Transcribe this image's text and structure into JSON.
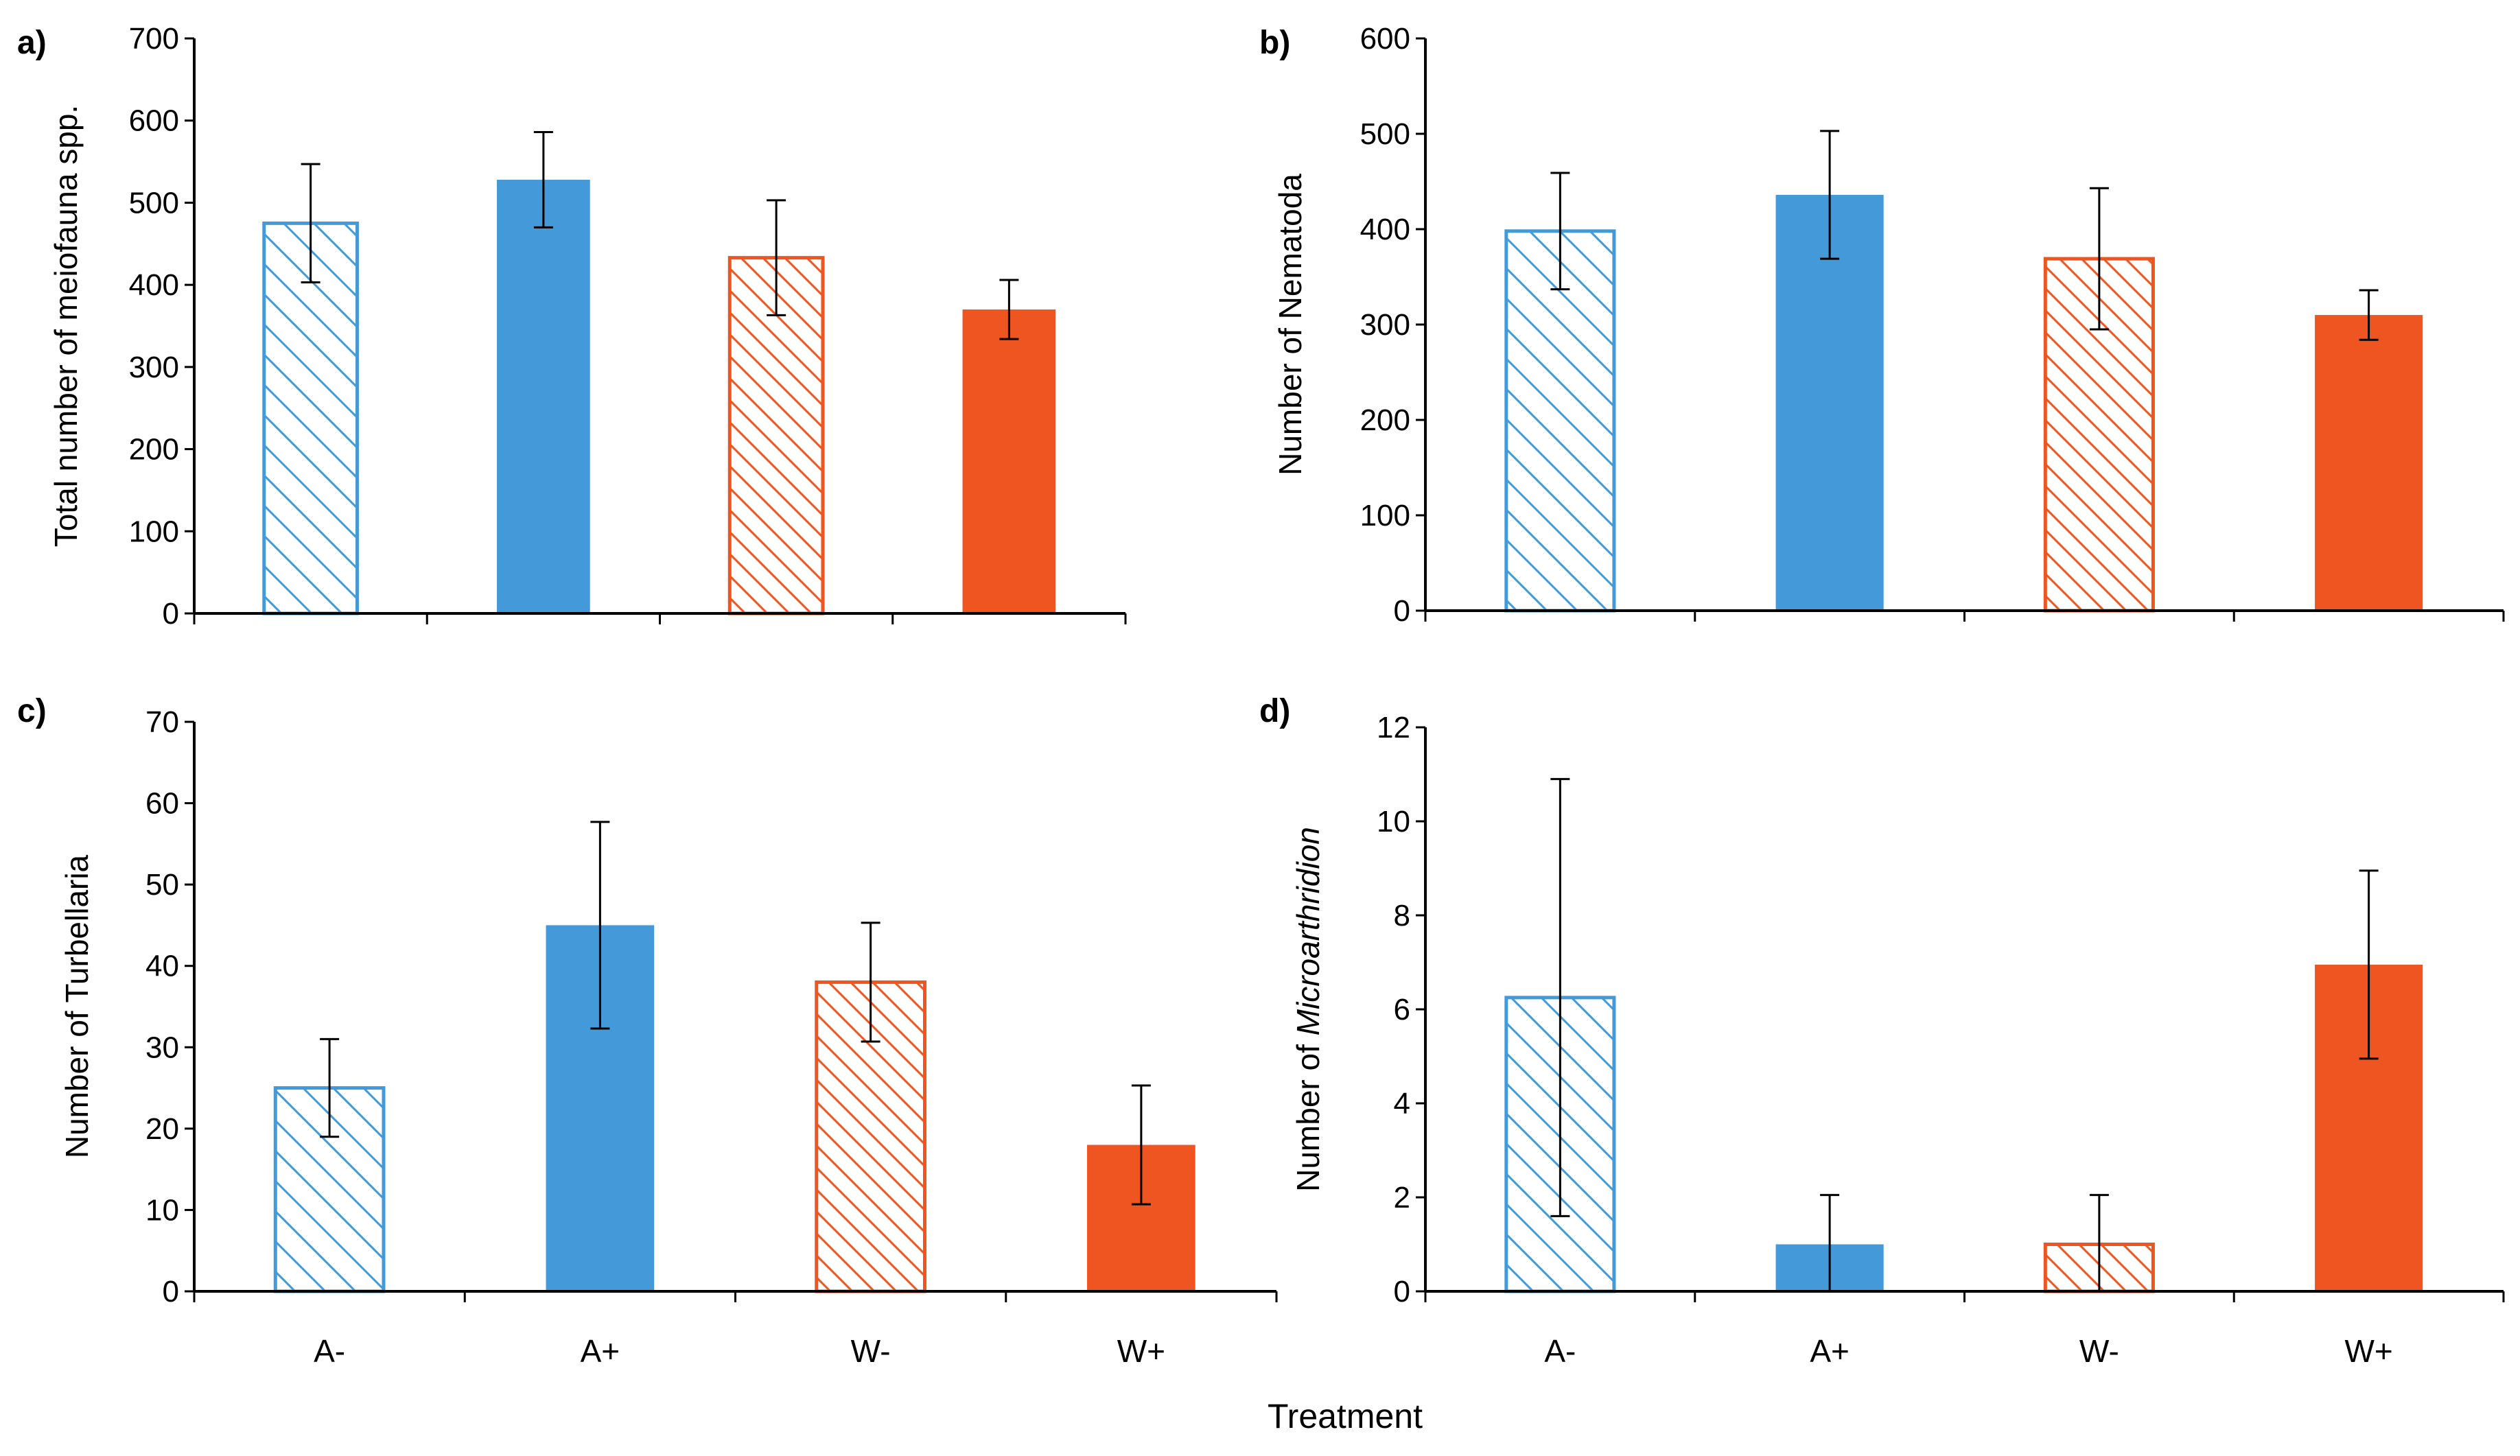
{
  "figure": {
    "xlabel": "Treatment",
    "colors": {
      "blue": "#449ad9",
      "orange": "#ef5520"
    }
  },
  "chart_data": [
    {
      "id": "a",
      "type": "bar",
      "panel_label": "a)",
      "title": "",
      "xlabel": "",
      "ylabel": "Total number of meiofauna spp.",
      "ylabel_italic": "",
      "categories": [
        "A-",
        "A+",
        "W-",
        "W+"
      ],
      "show_category_labels": false,
      "ylim": [
        0,
        700
      ],
      "yticks": [
        0,
        100,
        200,
        300,
        400,
        500,
        600,
        700
      ],
      "values": [
        475,
        528,
        433,
        370
      ],
      "errors": [
        72,
        58,
        70,
        36
      ],
      "styles": [
        "hatch-blue",
        "solid-blue",
        "hatch-orange",
        "solid-orange"
      ],
      "grid": false
    },
    {
      "id": "b",
      "type": "bar",
      "panel_label": "b)",
      "title": "",
      "xlabel": "",
      "ylabel": "Number of Nematoda",
      "ylabel_italic": "",
      "categories": [
        "A-",
        "A+",
        "W-",
        "W+"
      ],
      "show_category_labels": false,
      "ylim": [
        0,
        600
      ],
      "yticks": [
        0,
        100,
        200,
        300,
        400,
        500,
        600
      ],
      "values": [
        398,
        436,
        369,
        310
      ],
      "errors": [
        61,
        67,
        74,
        26
      ],
      "styles": [
        "hatch-blue",
        "solid-blue",
        "hatch-orange",
        "solid-orange"
      ],
      "grid": false
    },
    {
      "id": "c",
      "type": "bar",
      "panel_label": "c)",
      "title": "",
      "xlabel": "",
      "ylabel": "Number of Turbellaria",
      "ylabel_italic": "",
      "categories": [
        "A-",
        "A+",
        "W-",
        "W+"
      ],
      "show_category_labels": true,
      "ylim": [
        0,
        70
      ],
      "yticks": [
        0,
        10,
        20,
        30,
        40,
        50,
        60,
        70
      ],
      "values": [
        25,
        45,
        38,
        18
      ],
      "errors": [
        6,
        12.7,
        7.3,
        7.3
      ],
      "styles": [
        "hatch-blue",
        "solid-blue",
        "hatch-orange",
        "solid-orange"
      ],
      "grid": false
    },
    {
      "id": "d",
      "type": "bar",
      "panel_label": "d)",
      "title": "",
      "xlabel": "",
      "ylabel": "Number of ",
      "ylabel_italic": "Microarthridion",
      "categories": [
        "A-",
        "A+",
        "W-",
        "W+"
      ],
      "show_category_labels": true,
      "ylim": [
        0,
        12
      ],
      "yticks": [
        0,
        2,
        4,
        6,
        8,
        10,
        12
      ],
      "values": [
        6.25,
        1,
        1,
        6.95
      ],
      "errors": [
        4.65,
        1.05,
        1.05,
        2.0
      ],
      "styles": [
        "hatch-blue",
        "solid-blue",
        "hatch-orange",
        "solid-orange"
      ],
      "grid": false
    }
  ]
}
